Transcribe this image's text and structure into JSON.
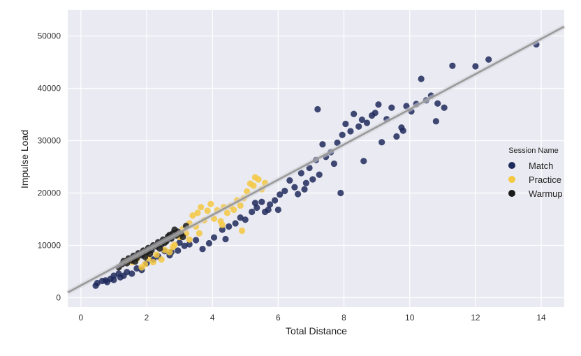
{
  "chart_data": {
    "type": "scatter",
    "title": "",
    "xlabel": "Total Distance",
    "ylabel": "Impulse Load",
    "xlim": [
      -0.4,
      14.7
    ],
    "ylim": [
      -1800,
      55000
    ],
    "xticks": [
      0,
      2,
      4,
      6,
      8,
      10,
      12,
      14
    ],
    "yticks": [
      0,
      10000,
      20000,
      30000,
      40000,
      50000
    ],
    "xtick_labels": [
      "0",
      "2",
      "4",
      "6",
      "8",
      "10",
      "12",
      "14"
    ],
    "ytick_labels": [
      "0",
      "10000",
      "20000",
      "30000",
      "40000",
      "50000"
    ],
    "grid": true,
    "background": "#eaeaf2",
    "legend": {
      "title": "Session Name",
      "position": "center-right",
      "entries": [
        "Match",
        "Practice",
        "Warmup"
      ]
    },
    "series": [
      {
        "name": "Match",
        "color": "#1f2a5c",
        "points": [
          [
            0.45,
            2300
          ],
          [
            0.5,
            2800
          ],
          [
            0.65,
            3200
          ],
          [
            0.75,
            3300
          ],
          [
            0.8,
            3000
          ],
          [
            0.9,
            3600
          ],
          [
            1.0,
            3400
          ],
          [
            1.0,
            4200
          ],
          [
            1.15,
            4600
          ],
          [
            1.2,
            3900
          ],
          [
            1.3,
            4200
          ],
          [
            1.4,
            4900
          ],
          [
            1.55,
            4600
          ],
          [
            1.7,
            5600
          ],
          [
            1.85,
            5300
          ],
          [
            2.0,
            6600
          ],
          [
            2.2,
            7300
          ],
          [
            2.35,
            7900
          ],
          [
            2.55,
            8900
          ],
          [
            2.75,
            8700
          ],
          [
            2.95,
            9000
          ],
          [
            3.15,
            9900
          ],
          [
            3.3,
            10200
          ],
          [
            3.5,
            11000
          ],
          [
            3.7,
            9300
          ],
          [
            3.9,
            10400
          ],
          [
            4.05,
            11500
          ],
          [
            4.3,
            13000
          ],
          [
            4.5,
            13600
          ],
          [
            4.7,
            14200
          ],
          [
            4.85,
            15300
          ],
          [
            5.0,
            14900
          ],
          [
            5.2,
            16400
          ],
          [
            5.35,
            17200
          ],
          [
            5.5,
            18300
          ],
          [
            5.6,
            16400
          ],
          [
            5.75,
            17800
          ],
          [
            5.9,
            18600
          ],
          [
            6.0,
            16800
          ],
          [
            6.05,
            19700
          ],
          [
            6.2,
            20400
          ],
          [
            6.35,
            22400
          ],
          [
            6.5,
            21100
          ],
          [
            6.6,
            19800
          ],
          [
            6.7,
            23800
          ],
          [
            6.85,
            21900
          ],
          [
            6.95,
            24800
          ],
          [
            7.05,
            22600
          ],
          [
            7.15,
            26300
          ],
          [
            7.25,
            23500
          ],
          [
            7.35,
            29300
          ],
          [
            7.45,
            26900
          ],
          [
            7.6,
            27800
          ],
          [
            7.7,
            25600
          ],
          [
            7.8,
            29600
          ],
          [
            7.9,
            20000
          ],
          [
            7.95,
            31100
          ],
          [
            8.05,
            33200
          ],
          [
            8.2,
            31800
          ],
          [
            8.3,
            35100
          ],
          [
            8.45,
            32700
          ],
          [
            8.6,
            26100
          ],
          [
            8.7,
            33400
          ],
          [
            8.85,
            34800
          ],
          [
            8.95,
            35300
          ],
          [
            9.05,
            36900
          ],
          [
            9.15,
            29700
          ],
          [
            9.3,
            34100
          ],
          [
            9.45,
            36300
          ],
          [
            9.6,
            30800
          ],
          [
            9.75,
            32500
          ],
          [
            9.9,
            36600
          ],
          [
            10.05,
            35600
          ],
          [
            10.2,
            37000
          ],
          [
            10.35,
            41800
          ],
          [
            10.5,
            37700
          ],
          [
            10.65,
            38600
          ],
          [
            10.8,
            33700
          ],
          [
            10.85,
            37100
          ],
          [
            11.05,
            36300
          ],
          [
            11.3,
            44300
          ],
          [
            12.0,
            44200
          ],
          [
            12.4,
            45500
          ],
          [
            13.85,
            48400
          ],
          [
            5.3,
            18100
          ],
          [
            5.7,
            16800
          ],
          [
            6.8,
            20700
          ],
          [
            4.4,
            11200
          ],
          [
            2.7,
            8100
          ],
          [
            3.0,
            10500
          ],
          [
            7.2,
            36000
          ],
          [
            8.55,
            34000
          ],
          [
            9.8,
            31900
          ]
        ]
      },
      {
        "name": "Practice",
        "color": "#f5c842",
        "points": [
          [
            1.4,
            7000
          ],
          [
            1.55,
            6800
          ],
          [
            1.7,
            7400
          ],
          [
            1.85,
            5800
          ],
          [
            1.95,
            6400
          ],
          [
            2.05,
            7500
          ],
          [
            2.2,
            6800
          ],
          [
            2.3,
            8200
          ],
          [
            2.45,
            7300
          ],
          [
            2.55,
            9100
          ],
          [
            2.7,
            8700
          ],
          [
            2.85,
            10100
          ],
          [
            3.0,
            11600
          ],
          [
            3.1,
            13100
          ],
          [
            3.2,
            12300
          ],
          [
            3.3,
            14200
          ],
          [
            3.4,
            15700
          ],
          [
            3.5,
            13600
          ],
          [
            3.55,
            16200
          ],
          [
            3.65,
            17300
          ],
          [
            3.75,
            14800
          ],
          [
            3.85,
            16600
          ],
          [
            3.95,
            17900
          ],
          [
            4.05,
            15100
          ],
          [
            4.15,
            16700
          ],
          [
            4.25,
            14600
          ],
          [
            4.35,
            17300
          ],
          [
            4.45,
            16200
          ],
          [
            4.55,
            17500
          ],
          [
            4.65,
            16800
          ],
          [
            4.75,
            18600
          ],
          [
            4.85,
            17600
          ],
          [
            4.95,
            19000
          ],
          [
            5.05,
            20300
          ],
          [
            5.15,
            21800
          ],
          [
            5.25,
            21400
          ],
          [
            5.3,
            23000
          ],
          [
            5.4,
            22600
          ],
          [
            5.5,
            20700
          ],
          [
            5.6,
            21900
          ],
          [
            4.9,
            12800
          ],
          [
            3.3,
            11100
          ],
          [
            2.8,
            9700
          ],
          [
            3.6,
            12300
          ],
          [
            4.3,
            13900
          ]
        ]
      },
      {
        "name": "Warmup",
        "color": "#1a1a1a",
        "points": [
          [
            1.15,
            5800
          ],
          [
            1.25,
            6400
          ],
          [
            1.3,
            7000
          ],
          [
            1.4,
            6600
          ],
          [
            1.45,
            7500
          ],
          [
            1.55,
            7100
          ],
          [
            1.6,
            8000
          ],
          [
            1.7,
            7600
          ],
          [
            1.75,
            8500
          ],
          [
            1.85,
            8100
          ],
          [
            1.9,
            9000
          ],
          [
            2.0,
            8700
          ],
          [
            2.05,
            9500
          ],
          [
            2.15,
            9100
          ],
          [
            2.2,
            10000
          ],
          [
            2.3,
            9800
          ],
          [
            2.35,
            10600
          ],
          [
            2.45,
            10200
          ],
          [
            2.5,
            11100
          ],
          [
            2.6,
            10800
          ],
          [
            2.65,
            11700
          ],
          [
            2.75,
            11300
          ],
          [
            2.8,
            12300
          ],
          [
            2.9,
            11900
          ],
          [
            2.95,
            12600
          ],
          [
            3.05,
            12200
          ],
          [
            3.1,
            11600
          ],
          [
            2.4,
            9400
          ],
          [
            2.1,
            8400
          ],
          [
            1.95,
            7800
          ],
          [
            2.55,
            10500
          ],
          [
            2.7,
            12000
          ],
          [
            2.85,
            13000
          ],
          [
            1.65,
            6900
          ],
          [
            3.2,
            13700
          ]
        ]
      }
    ],
    "regression_line": {
      "color": "#9a9a9a",
      "points": [
        [
          -0.4,
          1000
        ],
        [
          14.7,
          51800
        ]
      ]
    }
  }
}
